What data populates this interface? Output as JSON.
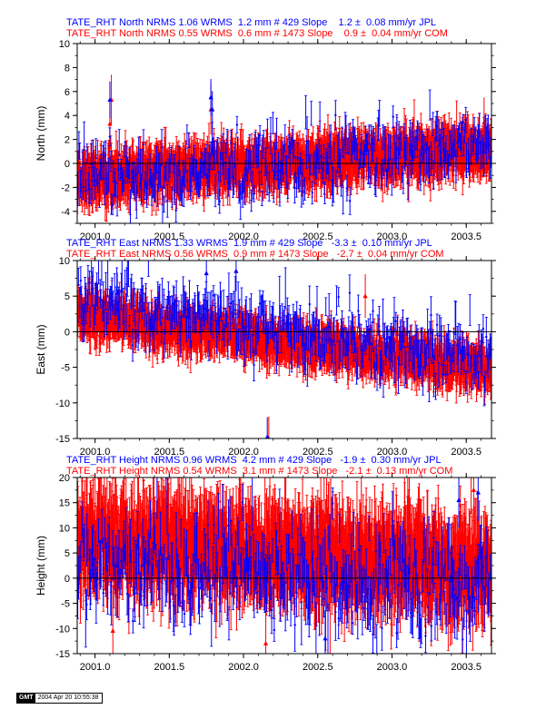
{
  "colors": {
    "jpl": "#0000ff",
    "com": "#ff0000",
    "axis": "#000000",
    "zero_line": "#000000"
  },
  "footer": {
    "logo": "GMT",
    "timestamp": "2004 Apr 20 10:55:38"
  },
  "chart_data": [
    {
      "type": "scatter",
      "panel": "north",
      "ylabel": "North (mm)",
      "xlim": [
        2000.88,
        2003.67
      ],
      "ylim": [
        -5,
        10
      ],
      "yticks": [
        -4,
        -2,
        0,
        2,
        4,
        6,
        8,
        10
      ],
      "xticks": [
        2001.0,
        2001.5,
        2002.0,
        2002.5,
        2003.0,
        2003.5
      ],
      "xtick_labels": [
        "2001.0",
        "2001.5",
        "2002.0",
        "2002.5",
        "2003.0",
        "2003.5"
      ],
      "zero_line": true,
      "header_lines": [
        {
          "series": "JPL",
          "text": "TATE_RHT North NRMS 1.06 WRMS  1.2 mm # 429 Slope    1.2 ±  0.08 mm/yr JPL"
        },
        {
          "series": "COM",
          "text": "TATE_RHT North NRMS 0.55 WRMS  0.6 mm # 1473 Slope    0.9 ±  0.04 mm/yr COM"
        }
      ],
      "series": [
        {
          "name": "COM",
          "count": 1473,
          "x_range": [
            2000.88,
            2003.67
          ],
          "wrms": 0.6,
          "typical_sigma": 1.5,
          "trend_mm_per_yr": 0.9,
          "mean": 0.0,
          "outliers": [
            [
              2001.1,
              3.3
            ],
            [
              2001.11,
              5.3
            ],
            [
              2001.78,
              4.5
            ],
            [
              2003.62,
              3.4
            ]
          ]
        },
        {
          "name": "JPL",
          "count": 429,
          "x_range": [
            2000.88,
            2003.67
          ],
          "wrms": 1.2,
          "typical_sigma": 1.1,
          "trend_mm_per_yr": 1.2,
          "mean": 0.0,
          "outliers": [
            [
              2001.1,
              5.3
            ],
            [
              2001.78,
              5.5
            ],
            [
              2001.79,
              4.5
            ]
          ]
        }
      ]
    },
    {
      "type": "scatter",
      "panel": "east",
      "ylabel": "East (mm)",
      "xlim": [
        2000.88,
        2003.67
      ],
      "ylim": [
        -15,
        10
      ],
      "yticks": [
        -15,
        -10,
        -5,
        0,
        5,
        10
      ],
      "xticks": [
        2001.0,
        2001.5,
        2002.0,
        2002.5,
        2003.0,
        2003.5
      ],
      "xtick_labels": [
        "2001.0",
        "2001.5",
        "2002.0",
        "2002.5",
        "2003.0",
        "2003.5"
      ],
      "zero_line": true,
      "header_lines": [
        {
          "series": "JPL",
          "text": "TATE_RHT East NRMS 1.33 WRMS  1.9 mm # 429 Slope   -3.3 ±  0.10 mm/yr JPL"
        },
        {
          "series": "COM",
          "text": "TATE_RHT East NRMS 0.56 WRMS  0.9 mm # 1473 Slope   -2.7 ±  0.04 mm/yr COM"
        }
      ],
      "series": [
        {
          "name": "COM",
          "count": 1473,
          "x_range": [
            2000.88,
            2003.67
          ],
          "wrms": 0.9,
          "typical_sigma": 2.2,
          "trend_mm_per_yr": -2.7,
          "mean": -1.5,
          "outliers": [
            [
              2002.17,
              -15.0
            ],
            [
              2002.82,
              5.0
            ]
          ]
        },
        {
          "name": "JPL",
          "count": 429,
          "x_range": [
            2000.88,
            2003.67
          ],
          "wrms": 1.9,
          "typical_sigma": 2.0,
          "trend_mm_per_yr": -3.3,
          "mean": 0.5,
          "outliers": [
            [
              2001.75,
              8.2
            ],
            [
              2001.95,
              8.5
            ],
            [
              2002.16,
              -14.8
            ],
            [
              2001.15,
              5.5
            ]
          ]
        }
      ]
    },
    {
      "type": "scatter",
      "panel": "height",
      "ylabel": "Height (mm)",
      "xlim": [
        2000.88,
        2003.67
      ],
      "ylim": [
        -15,
        20
      ],
      "yticks": [
        -15,
        -10,
        -5,
        0,
        5,
        10,
        15,
        20
      ],
      "xticks": [
        2001.0,
        2001.5,
        2002.0,
        2002.5,
        2003.0,
        2003.5
      ],
      "xtick_labels": [
        "2001.0",
        "2001.5",
        "2002.0",
        "2002.5",
        "2003.0",
        "2003.5"
      ],
      "zero_line": true,
      "header_lines": [
        {
          "series": "JPL",
          "text": "TATE_RHT Height NRMS 0.96 WRMS  4.2 mm # 429 Slope   -1.9 ±  0.30 mm/yr JPL"
        },
        {
          "series": "COM",
          "text": "TATE_RHT Height NRMS 0.54 WRMS  3.1 mm # 1473 Slope   -2.1 ±  0.13 mm/yr COM"
        }
      ],
      "series": [
        {
          "name": "COM",
          "count": 1473,
          "x_range": [
            2000.88,
            2003.67
          ],
          "wrms": 3.1,
          "typical_sigma": 6.5,
          "trend_mm_per_yr": -2.1,
          "mean": 5.0,
          "outliers": [
            [
              2001.12,
              -10.5
            ],
            [
              2002.15,
              -13.0
            ],
            [
              2003.55,
              17.5
            ]
          ]
        },
        {
          "name": "JPL",
          "count": 429,
          "x_range": [
            2000.88,
            2003.67
          ],
          "wrms": 4.2,
          "typical_sigma": 4.0,
          "trend_mm_per_yr": -1.9,
          "mean": 1.0,
          "outliers": [
            [
              2002.55,
              -12.0
            ],
            [
              2003.58,
              17.0
            ],
            [
              2003.45,
              15.5
            ]
          ]
        }
      ]
    }
  ]
}
